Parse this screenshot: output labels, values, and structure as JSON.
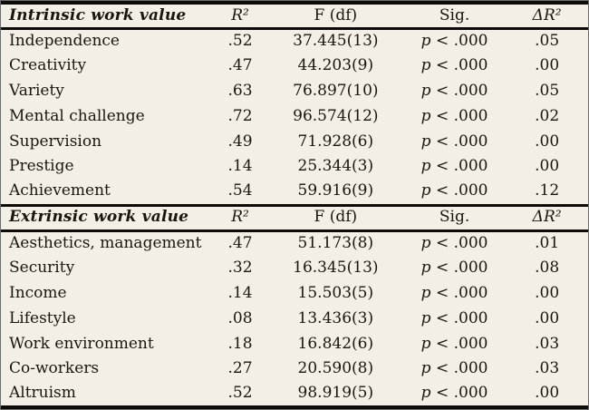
{
  "meta": {
    "background_color": "#f3efe7",
    "text_color": "#1b150d",
    "rule_color": "#0d0b07"
  },
  "table": {
    "sections": [
      {
        "title": "Intrinsic work value",
        "columns": [
          "R²",
          "F (df)",
          "Sig.",
          "ΔR²"
        ],
        "rows": [
          {
            "label": "Independence",
            "r2": ".52",
            "f_df": "37.445(13)",
            "sig": "p < .000",
            "delta_r2": ".05"
          },
          {
            "label": "Creativity",
            "r2": ".47",
            "f_df": "44.203(9)",
            "sig": "p < .000",
            "delta_r2": ".00"
          },
          {
            "label": "Variety",
            "r2": ".63",
            "f_df": "76.897(10)",
            "sig": "p < .000",
            "delta_r2": ".05"
          },
          {
            "label": "Mental challenge",
            "r2": ".72",
            "f_df": "96.574(12)",
            "sig": "p < .000",
            "delta_r2": ".02"
          },
          {
            "label": "Supervision",
            "r2": ".49",
            "f_df": "71.928(6)",
            "sig": "p < .000",
            "delta_r2": ".00"
          },
          {
            "label": "Prestige",
            "r2": ".14",
            "f_df": "25.344(3)",
            "sig": "p < .000",
            "delta_r2": ".00"
          },
          {
            "label": "Achievement",
            "r2": ".54",
            "f_df": "59.916(9)",
            "sig": "p < .000",
            "delta_r2": ".12"
          }
        ]
      },
      {
        "title": "Extrinsic work value",
        "columns": [
          "R²",
          "F (df)",
          "Sig.",
          "ΔR²"
        ],
        "rows": [
          {
            "label": "Aesthetics, management",
            "r2": ".47",
            "f_df": "51.173(8)",
            "sig": "p < .000",
            "delta_r2": ".01"
          },
          {
            "label": "Security",
            "r2": ".32",
            "f_df": "16.345(13)",
            "sig": "p < .000",
            "delta_r2": ".08"
          },
          {
            "label": "Income",
            "r2": ".14",
            "f_df": "15.503(5)",
            "sig": "p < .000",
            "delta_r2": ".00"
          },
          {
            "label": "Lifestyle",
            "r2": ".08",
            "f_df": "13.436(3)",
            "sig": "p < .000",
            "delta_r2": ".00"
          },
          {
            "label": "Work environment",
            "r2": ".18",
            "f_df": "16.842(6)",
            "sig": "p < .000",
            "delta_r2": ".03"
          },
          {
            "label": "Co-workers",
            "r2": ".27",
            "f_df": "20.590(8)",
            "sig": "p < .000",
            "delta_r2": ".03"
          },
          {
            "label": "Altruism",
            "r2": ".52",
            "f_df": "98.919(5)",
            "sig": "p < .000",
            "delta_r2": ".00"
          }
        ]
      }
    ]
  }
}
